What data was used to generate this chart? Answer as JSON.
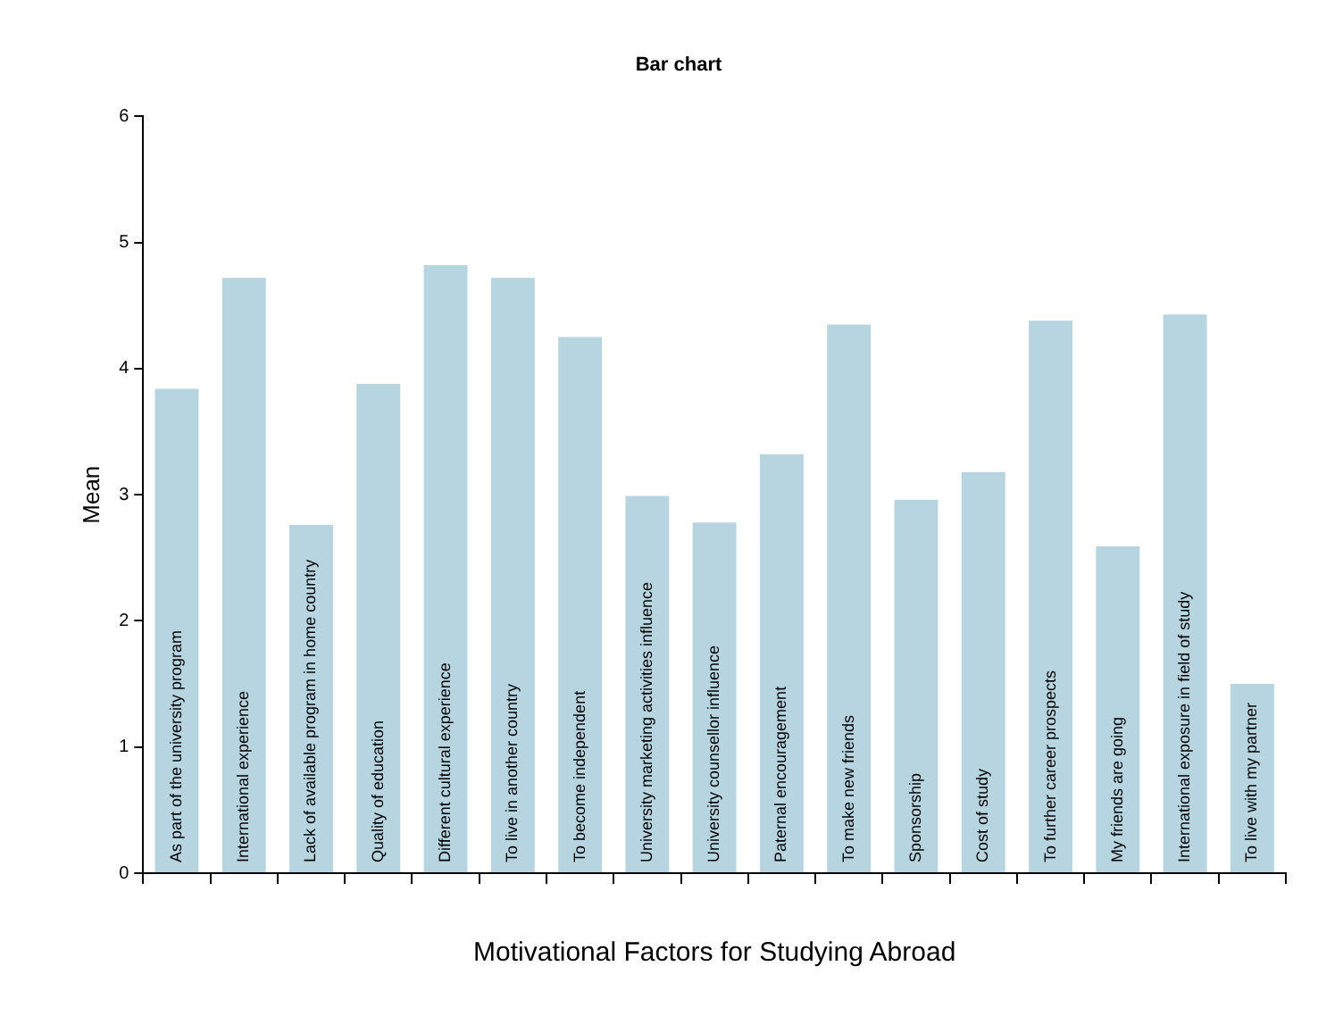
{
  "chart_data": {
    "type": "bar",
    "title": "Bar chart",
    "xlabel": "Motivational Factors for Studying Abroad",
    "ylabel": "Mean",
    "categories": [
      "As part of the university program",
      "International experience",
      "Lack of available program in home country",
      "Quality of education",
      "Different cultural experience",
      "To live in another country",
      "To become independent",
      "University marketing activities influence",
      "University counsellor influence",
      "Paternal encouragement",
      "To make new friends",
      "Sponsorship",
      "Cost of study",
      "To further career prospects",
      "My friends are going",
      "International exposure in field of study",
      "To live with my partner"
    ],
    "values": [
      3.84,
      4.72,
      2.76,
      3.88,
      4.82,
      4.72,
      4.25,
      2.99,
      2.78,
      3.32,
      4.35,
      2.96,
      3.18,
      4.38,
      2.59,
      4.43,
      1.5
    ],
    "color": "#b7d4e1",
    "ylim": [
      0,
      6
    ],
    "yticks": [
      0,
      1,
      2,
      3,
      4,
      5,
      6
    ],
    "grid": false,
    "legend": false
  }
}
